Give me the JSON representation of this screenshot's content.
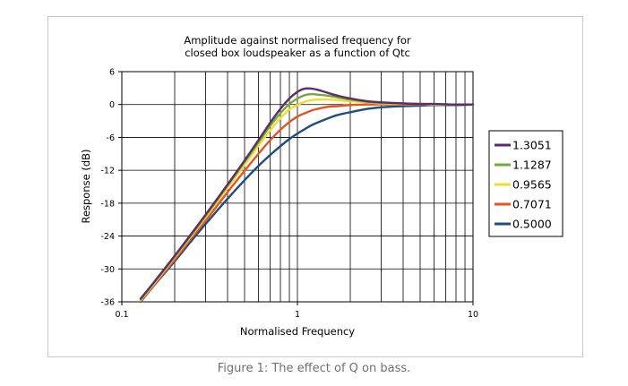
{
  "caption": "Figure 1: The effect of Q on bass.",
  "chart_data": {
    "type": "line",
    "title_lines": [
      "Amplitude against normalised frequency for",
      "closed box loudspeaker as a function of Qtc"
    ],
    "xlabel": "Normalised Frequency",
    "ylabel": "Response (dB)",
    "xscale": "log",
    "xlim": [
      0.1,
      10
    ],
    "ylim": [
      -36,
      6
    ],
    "x_tick_labels": [
      "0.1",
      "1",
      "10"
    ],
    "y_ticks": [
      6,
      0,
      -6,
      -12,
      -18,
      -24,
      -30,
      -36
    ],
    "grid": true,
    "legend_position": "right",
    "x": [
      0.128,
      0.15,
      0.2,
      0.25,
      0.3,
      0.4,
      0.5,
      0.6,
      0.7,
      0.8,
      0.9,
      1.0,
      1.1,
      1.2,
      1.3,
      1.5,
      1.7,
      2.0,
      2.5,
      3.0,
      4.0,
      5.0,
      6.0,
      8.0,
      10.0
    ],
    "series": [
      {
        "name": "1.3051",
        "color": "#5b2c6f",
        "values": [
          -35.4,
          -32.7,
          -27.6,
          -23.5,
          -20.1,
          -14.6,
          -10.2,
          -6.5,
          -3.3,
          -0.8,
          1.1,
          2.3,
          2.9,
          2.9,
          2.7,
          2.1,
          1.6,
          1.1,
          0.6,
          0.4,
          0.2,
          0.1,
          0.1,
          0.0,
          0.0
        ]
      },
      {
        "name": "1.1287",
        "color": "#77a83a",
        "values": [
          -35.6,
          -32.8,
          -27.7,
          -23.7,
          -20.3,
          -14.8,
          -10.5,
          -6.9,
          -3.9,
          -1.6,
          0.1,
          1.1,
          1.7,
          1.9,
          1.8,
          1.6,
          1.3,
          0.9,
          0.5,
          0.3,
          0.2,
          0.1,
          0.1,
          0.0,
          0.0
        ]
      },
      {
        "name": "0.9565",
        "color": "#f2dc2d",
        "values": [
          -35.7,
          -33.0,
          -27.9,
          -23.9,
          -20.6,
          -15.2,
          -11.0,
          -7.5,
          -4.7,
          -2.5,
          -0.9,
          -0.1,
          0.5,
          0.8,
          0.9,
          0.9,
          0.8,
          0.6,
          0.4,
          0.2,
          0.1,
          0.1,
          0.0,
          0.0,
          0.0
        ]
      },
      {
        "name": "0.7071",
        "color": "#e8531f",
        "values": [
          -35.9,
          -33.2,
          -28.3,
          -24.3,
          -21.2,
          -16.0,
          -12.1,
          -9.0,
          -6.5,
          -4.6,
          -3.2,
          -2.2,
          -1.6,
          -1.1,
          -0.8,
          -0.4,
          -0.3,
          -0.1,
          0.0,
          0.0,
          0.0,
          0.0,
          0.0,
          0.0,
          0.0
        ]
      },
      {
        "name": "0.5000",
        "color": "#1e4e7e",
        "values": [
          -36.0,
          -33.3,
          -28.6,
          -24.8,
          -21.8,
          -17.2,
          -13.8,
          -11.2,
          -9.2,
          -7.6,
          -6.3,
          -5.3,
          -4.5,
          -3.8,
          -3.3,
          -2.5,
          -1.9,
          -1.4,
          -0.8,
          -0.5,
          -0.3,
          -0.2,
          -0.1,
          -0.1,
          0.0
        ]
      }
    ]
  }
}
